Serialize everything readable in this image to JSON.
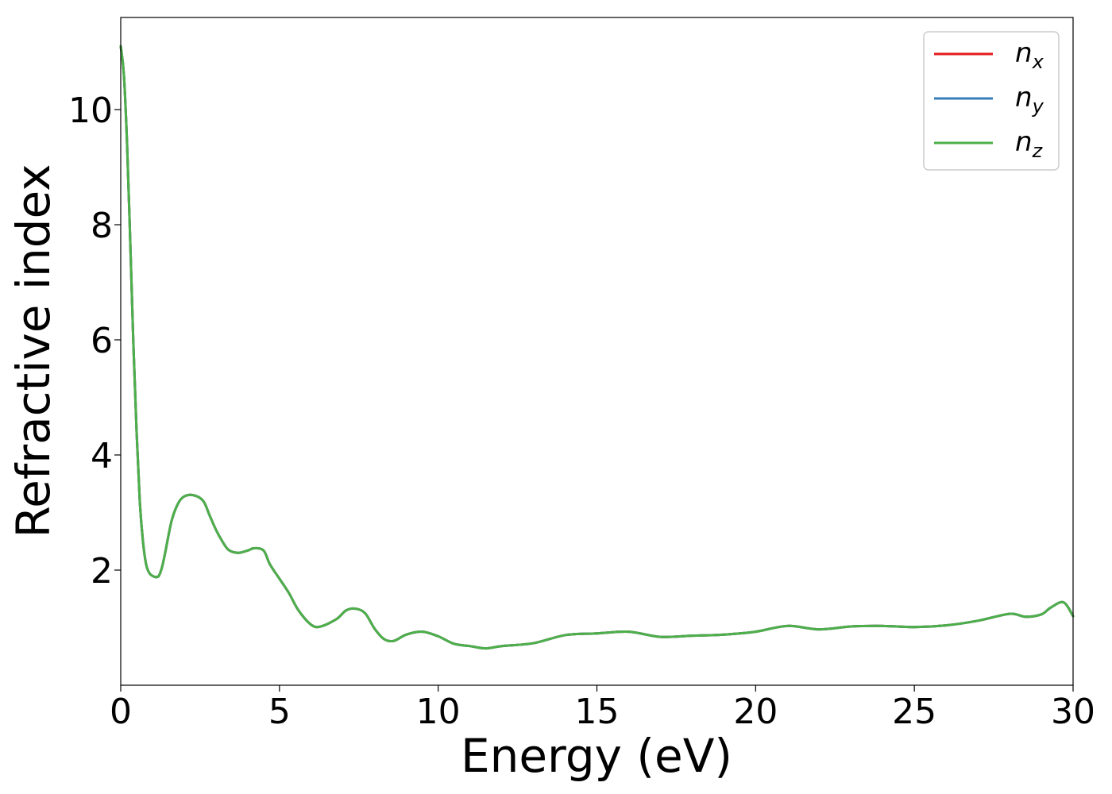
{
  "chart_data": {
    "type": "line",
    "xlabel": "Energy (eV)",
    "ylabel": "Refractive index",
    "xlim": [
      0,
      30
    ],
    "ylim": [
      0,
      11.6
    ],
    "xticks": [
      0,
      5,
      10,
      15,
      20,
      25,
      30
    ],
    "yticks": [
      2,
      4,
      6,
      8,
      10
    ],
    "grid": false,
    "legend_position": "top-right",
    "series": [
      {
        "name": "n_x",
        "legend_base": "n",
        "legend_sub": "x",
        "color": "#e41a1c",
        "x": [
          0.0,
          0.1,
          0.2,
          0.3,
          0.4,
          0.5,
          0.6,
          0.7,
          0.8,
          0.9,
          1.0,
          1.1,
          1.2,
          1.3,
          1.4,
          1.6,
          1.8,
          2.0,
          2.3,
          2.6,
          2.8,
          3.0,
          3.2,
          3.4,
          3.7,
          4.0,
          4.2,
          4.5,
          4.7,
          5.0,
          5.3,
          5.6,
          6.0,
          6.3,
          6.8,
          7.1,
          7.4,
          7.7,
          8.0,
          8.3,
          8.6,
          9.0,
          9.5,
          10.0,
          10.5,
          11.0,
          11.5,
          12.0,
          13.0,
          14.0,
          15.0,
          16.0,
          17.0,
          18.0,
          19.0,
          20.0,
          21.0,
          22.0,
          23.0,
          24.0,
          25.0,
          26.0,
          27.0,
          28.0,
          28.5,
          29.0,
          29.3,
          29.7,
          30.0
        ],
        "y": [
          11.1,
          10.6,
          9.4,
          7.7,
          5.9,
          4.4,
          3.2,
          2.5,
          2.1,
          1.95,
          1.9,
          1.88,
          1.9,
          2.05,
          2.3,
          2.85,
          3.15,
          3.28,
          3.3,
          3.2,
          2.95,
          2.7,
          2.5,
          2.35,
          2.3,
          2.34,
          2.38,
          2.34,
          2.1,
          1.85,
          1.6,
          1.3,
          1.05,
          1.02,
          1.15,
          1.3,
          1.33,
          1.25,
          0.98,
          0.8,
          0.77,
          0.88,
          0.93,
          0.85,
          0.72,
          0.68,
          0.64,
          0.68,
          0.73,
          0.87,
          0.9,
          0.93,
          0.84,
          0.86,
          0.88,
          0.93,
          1.03,
          0.97,
          1.02,
          1.03,
          1.01,
          1.04,
          1.12,
          1.24,
          1.19,
          1.23,
          1.35,
          1.44,
          1.2
        ]
      },
      {
        "name": "n_y",
        "legend_base": "n",
        "legend_sub": "y",
        "color": "#377eb8",
        "x": [
          0.0,
          0.1,
          0.2,
          0.3,
          0.4,
          0.5,
          0.6,
          0.7,
          0.8,
          0.9,
          1.0,
          1.1,
          1.2,
          1.3,
          1.4,
          1.6,
          1.8,
          2.0,
          2.3,
          2.6,
          2.8,
          3.0,
          3.2,
          3.4,
          3.7,
          4.0,
          4.2,
          4.5,
          4.7,
          5.0,
          5.3,
          5.6,
          6.0,
          6.3,
          6.8,
          7.1,
          7.4,
          7.7,
          8.0,
          8.3,
          8.6,
          9.0,
          9.5,
          10.0,
          10.5,
          11.0,
          11.5,
          12.0,
          13.0,
          14.0,
          15.0,
          16.0,
          17.0,
          18.0,
          19.0,
          20.0,
          21.0,
          22.0,
          23.0,
          24.0,
          25.0,
          26.0,
          27.0,
          28.0,
          28.5,
          29.0,
          29.3,
          29.7,
          30.0
        ],
        "y": [
          11.1,
          10.6,
          9.4,
          7.7,
          5.9,
          4.4,
          3.2,
          2.5,
          2.1,
          1.95,
          1.9,
          1.88,
          1.9,
          2.05,
          2.3,
          2.85,
          3.15,
          3.28,
          3.3,
          3.2,
          2.95,
          2.7,
          2.5,
          2.35,
          2.3,
          2.34,
          2.38,
          2.34,
          2.1,
          1.85,
          1.6,
          1.3,
          1.05,
          1.02,
          1.15,
          1.3,
          1.33,
          1.25,
          0.98,
          0.8,
          0.77,
          0.88,
          0.93,
          0.85,
          0.72,
          0.68,
          0.64,
          0.68,
          0.73,
          0.87,
          0.9,
          0.93,
          0.84,
          0.86,
          0.88,
          0.93,
          1.03,
          0.97,
          1.02,
          1.03,
          1.01,
          1.04,
          1.12,
          1.24,
          1.19,
          1.23,
          1.35,
          1.44,
          1.2
        ]
      },
      {
        "name": "n_z",
        "legend_base": "n",
        "legend_sub": "z",
        "color": "#4daf4a",
        "x": [
          0.0,
          0.1,
          0.2,
          0.3,
          0.4,
          0.5,
          0.6,
          0.7,
          0.8,
          0.9,
          1.0,
          1.1,
          1.2,
          1.3,
          1.4,
          1.6,
          1.8,
          2.0,
          2.3,
          2.6,
          2.8,
          3.0,
          3.2,
          3.4,
          3.7,
          4.0,
          4.2,
          4.5,
          4.7,
          5.0,
          5.3,
          5.6,
          6.0,
          6.3,
          6.8,
          7.1,
          7.4,
          7.7,
          8.0,
          8.3,
          8.6,
          9.0,
          9.5,
          10.0,
          10.5,
          11.0,
          11.5,
          12.0,
          13.0,
          14.0,
          15.0,
          16.0,
          17.0,
          18.0,
          19.0,
          20.0,
          21.0,
          22.0,
          23.0,
          24.0,
          25.0,
          26.0,
          27.0,
          28.0,
          28.5,
          29.0,
          29.3,
          29.7,
          30.0
        ],
        "y": [
          11.1,
          10.6,
          9.4,
          7.7,
          5.9,
          4.4,
          3.2,
          2.5,
          2.1,
          1.95,
          1.9,
          1.88,
          1.9,
          2.05,
          2.3,
          2.85,
          3.15,
          3.28,
          3.3,
          3.2,
          2.95,
          2.7,
          2.5,
          2.35,
          2.3,
          2.34,
          2.38,
          2.34,
          2.1,
          1.85,
          1.6,
          1.3,
          1.05,
          1.02,
          1.15,
          1.3,
          1.33,
          1.25,
          0.98,
          0.8,
          0.77,
          0.88,
          0.93,
          0.85,
          0.72,
          0.68,
          0.64,
          0.68,
          0.73,
          0.87,
          0.9,
          0.93,
          0.84,
          0.86,
          0.88,
          0.93,
          1.03,
          0.97,
          1.02,
          1.03,
          1.01,
          1.04,
          1.12,
          1.24,
          1.19,
          1.23,
          1.35,
          1.44,
          1.2
        ]
      }
    ]
  }
}
